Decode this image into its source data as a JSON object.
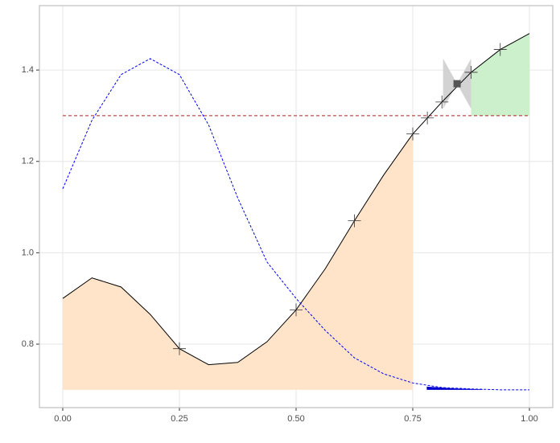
{
  "chart_data": {
    "type": "line",
    "x": [
      0,
      0.0625,
      0.125,
      0.1875,
      0.25,
      0.3125,
      0.375,
      0.4375,
      0.5,
      0.5625,
      0.625,
      0.6875,
      0.75,
      0.8125,
      0.875,
      0.9375,
      1.0
    ],
    "series": [
      {
        "color": "#000000",
        "dash": false,
        "values": [
          0.9,
          0.945,
          0.925,
          0.865,
          0.79,
          0.755,
          0.76,
          0.805,
          0.875,
          0.965,
          1.07,
          1.17,
          1.26,
          1.33,
          1.395,
          1.445,
          1.48
        ]
      },
      {
        "color": "#0000ff",
        "dash": true,
        "values": [
          1.14,
          1.29,
          1.39,
          1.425,
          1.39,
          1.28,
          1.12,
          0.98,
          0.9,
          0.83,
          0.77,
          0.735,
          0.715,
          0.705,
          0.702,
          0.7,
          0.7
        ]
      }
    ],
    "hline": {
      "value": 1.3,
      "color": "#b22222"
    },
    "areas": [
      {
        "series": 0,
        "from": 0,
        "to": 0.75,
        "base": 0.7,
        "color": "#ffe4c9"
      },
      {
        "series": 0,
        "from": 0.875,
        "to": 1.0,
        "base": 1.3,
        "color": "#ccefcc"
      }
    ],
    "ribbons": [
      {
        "x": [
          0.815,
          0.845,
          0.875
        ],
        "ymin": [
          1.315,
          1.37,
          1.315
        ],
        "ymax": [
          1.425,
          1.37,
          1.425
        ],
        "color": "#d3d3d3"
      },
      {
        "x": [
          0.78,
          0.84,
          0.9
        ],
        "ymin": [
          0.7,
          0.7,
          0.7
        ],
        "ymax": [
          0.707,
          0.703,
          0.701
        ],
        "color": "#0000cd"
      }
    ],
    "points": {
      "x": [
        0.25,
        0.5,
        0.625,
        0.75,
        0.78125,
        0.8125,
        0.875,
        0.9375
      ],
      "y": [
        0.79,
        0.875,
        1.07,
        1.26,
        1.295,
        1.33,
        1.395,
        1.445
      ],
      "color": "#333333"
    },
    "marker": {
      "x": 0.845,
      "y": 1.37,
      "color": "#555555"
    },
    "xlim": [
      -0.05,
      1.05
    ],
    "ylim": [
      0.661,
      1.541
    ],
    "xticks": [
      {
        "value": 0,
        "label": "0.00"
      },
      {
        "value": 0.25,
        "label": "0.25"
      },
      {
        "value": 0.5,
        "label": "0.50"
      },
      {
        "value": 0.75,
        "label": "0.75"
      },
      {
        "value": 1,
        "label": "1.00"
      }
    ],
    "yticks": [
      0.8,
      {
        "value": 1.0,
        "label": "1.0"
      },
      1.2,
      1.4
    ],
    "grid": true
  }
}
